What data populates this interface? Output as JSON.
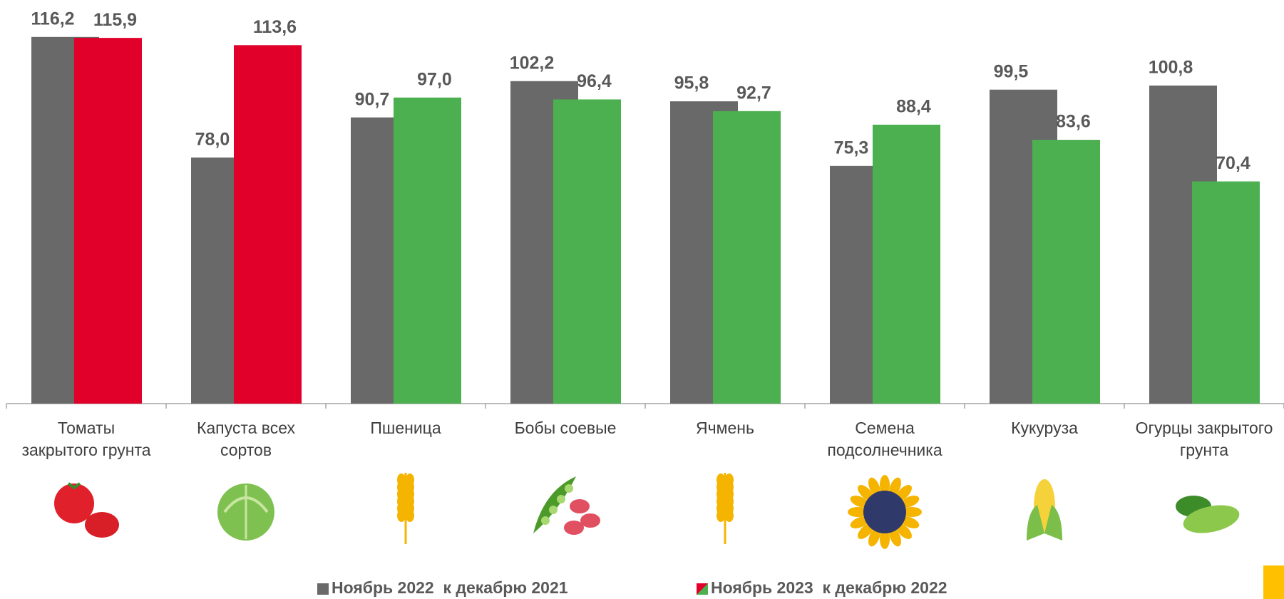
{
  "chart_data": {
    "type": "bar",
    "categories": [
      "Томаты\nзакрытого грунта",
      "Капуста всех\nсортов",
      "Пшеница",
      "Бобы соевые",
      "Ячмень",
      "Семена\nподсолнечника",
      "Кукуруза",
      "Огурцы закрытого\nгрунта"
    ],
    "series": [
      {
        "name": "Ноябрь 2022  к декабрю 2021",
        "color": "#696969",
        "values": [
          116.2,
          78.0,
          90.7,
          102.2,
          95.8,
          75.3,
          99.5,
          100.8
        ],
        "value_labels": [
          "116,2",
          "78,0",
          "90,7",
          "102,2",
          "95,8",
          "75,3",
          "99,5",
          "100,8"
        ]
      },
      {
        "name": "Ноябрь 2023  к декабрю 2022",
        "colors": [
          "#e0002a",
          "#e0002a",
          "#4caf50",
          "#4caf50",
          "#4caf50",
          "#4caf50",
          "#4caf50",
          "#4caf50"
        ],
        "values": [
          115.9,
          113.6,
          97.0,
          96.4,
          92.7,
          88.4,
          83.6,
          70.4
        ],
        "value_labels": [
          "115,9",
          "113,6",
          "97,0",
          "96,4",
          "92,7",
          "88,4",
          "83,6",
          "70,4"
        ]
      }
    ],
    "ylim": [
      0,
      120
    ],
    "grid": false
  }
}
